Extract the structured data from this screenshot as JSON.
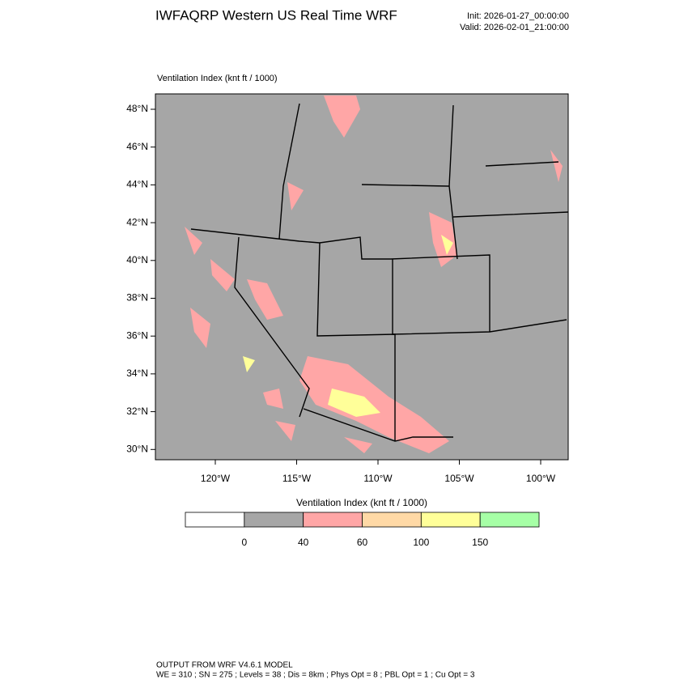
{
  "header": {
    "title": "IWFAQRP Western US Real Time WRF",
    "init": "Init: 2026-01-27_00:00:00",
    "valid": "Valid: 2026-02-01_21:00:00"
  },
  "map": {
    "label": "Ventilation Index   (knt ft / 1000)",
    "lat_ticks": [
      "48°N",
      "46°N",
      "44°N",
      "42°N",
      "40°N",
      "38°N",
      "36°N",
      "34°N",
      "32°N",
      "30°N"
    ],
    "lon_ticks": [
      "120°W",
      "115°W",
      "110°W",
      "105°W",
      "100°W"
    ]
  },
  "colorbar": {
    "title": "Ventilation Index   (knt ft / 1000)",
    "levels": [
      0,
      40,
      60,
      100,
      150
    ],
    "colors": [
      "#ffffff",
      "#a6a6a6",
      "#ffa6a6",
      "#ffd9a6",
      "#ffff99",
      "#a6ffa6"
    ]
  },
  "footer": {
    "line1": "OUTPUT FROM WRF V4.6.1 MODEL",
    "line2": "WE = 310 ; SN = 275 ; Levels = 38 ; Dis = 8km ; Phys Opt = 8 ; PBL Opt = 1 ; Cu Opt = 3"
  }
}
